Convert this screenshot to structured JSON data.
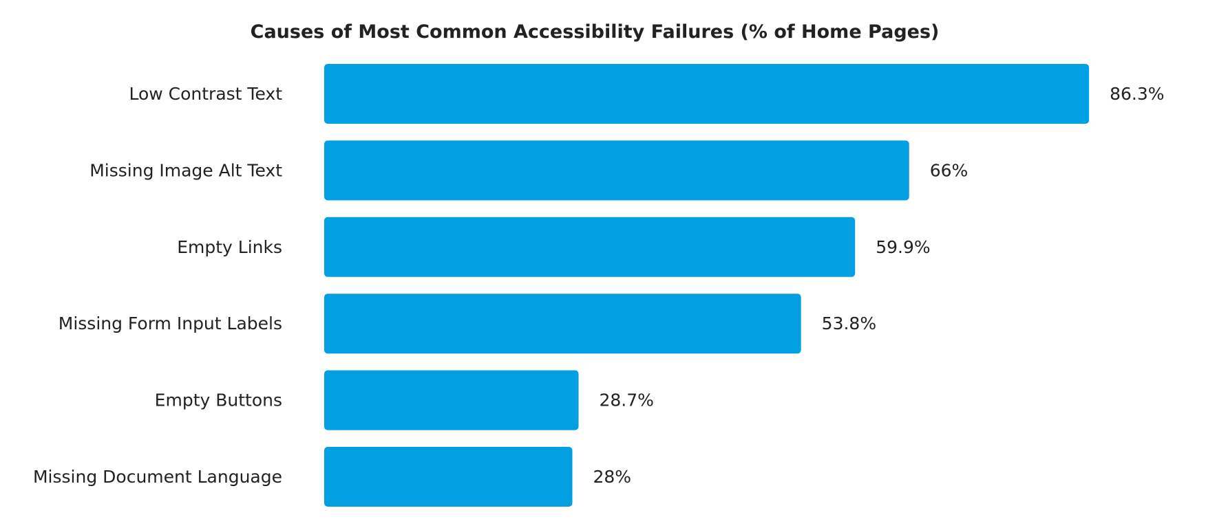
{
  "chart_data": {
    "type": "bar",
    "orientation": "horizontal",
    "title": "Causes of Most Common Accessibility Failures (% of Home Pages)",
    "categories": [
      "Low Contrast Text",
      "Missing Image Alt Text",
      "Empty Links",
      "Missing Form Input Labels",
      "Empty Buttons",
      "Missing Document Language"
    ],
    "values": [
      86.3,
      66,
      59.9,
      53.8,
      28.7,
      28
    ],
    "value_labels": [
      "86.3%",
      "66%",
      "59.9%",
      "53.8%",
      "28.7%",
      "28%"
    ],
    "xlim": [
      0,
      100
    ],
    "grid": false,
    "legend": "none",
    "bar_color": "#039fe3"
  }
}
